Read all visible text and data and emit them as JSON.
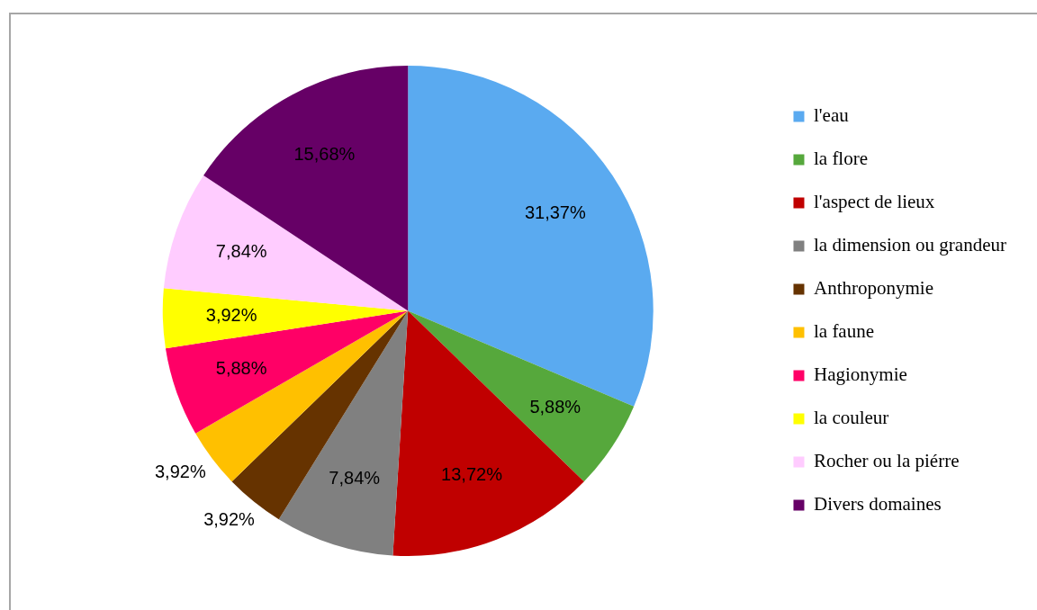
{
  "chart_data": {
    "type": "pie",
    "categories": [
      "l'eau",
      "la flore",
      "l'aspect de lieux",
      "la dimension ou grandeur",
      "Anthroponymie",
      "la faune",
      "Hagionymie",
      "la couleur",
      "Rocher ou la piérre",
      "Divers domaines"
    ],
    "values": [
      31.37,
      5.88,
      13.72,
      7.84,
      3.92,
      3.92,
      5.88,
      3.92,
      7.84,
      15.68
    ],
    "colors": [
      "#5aaaf0",
      "#56a83c",
      "#c00000",
      "#808080",
      "#663300",
      "#ffc000",
      "#ff0066",
      "#ffff00",
      "#ffccff",
      "#660066"
    ],
    "value_labels": [
      "31,37%",
      "5,88%",
      "13,72%",
      "7,84%",
      "3,92%",
      "3,92%",
      "5,88%",
      "3,92%",
      "7,84%",
      "15,68%"
    ],
    "legend": "right"
  }
}
